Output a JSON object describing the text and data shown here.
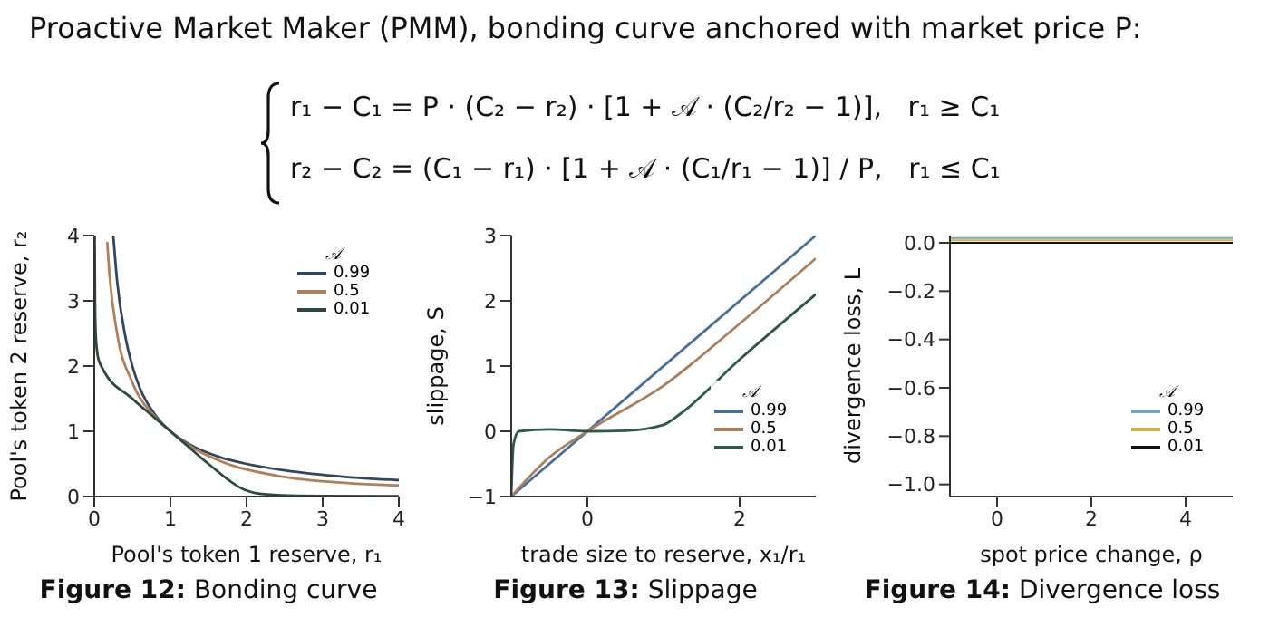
{
  "chart_data": [
    {
      "type": "line",
      "title": "Proactive Market Maker (PMM), bonding curve anchored with market price P:",
      "annotations": [
        "r₁ − C₁ = P · (C₂ − r₂) · [1 + 𝒜 · (C₂/r₂ − 1)],   r₁ ≥ C₁",
        "r₂ − C₂ = (C₁ − r₁) · [1 + 𝒜 · (C₁/r₁ − 1)] / P,   r₁ ≤ C₁",
        "Figure 12: Bonding curve"
      ],
      "xlabel": "Pool's token 1 reserve, r₁",
      "ylabel": "Pool's token 2 reserve, r₂",
      "xlim": [
        0,
        4
      ],
      "ylim": [
        0,
        4
      ],
      "xticks": [
        0,
        1,
        2,
        3,
        4
      ],
      "yticks": [
        0,
        1,
        2,
        3,
        4
      ],
      "marker": "none",
      "line_style": "solid",
      "legend": "top right",
      "legend_title": "𝒜",
      "series": [
        {
          "name": "0.99",
          "color": "#34465e",
          "x": [
            0.25,
            0.3,
            0.4,
            0.5,
            0.6,
            0.8,
            1,
            1.25,
            1.66,
            2,
            2.5,
            3.3,
            4
          ],
          "values": [
            4,
            3.3,
            2.5,
            2,
            1.66,
            1.25,
            1,
            0.8,
            0.6,
            0.5,
            0.4,
            0.3,
            0.25
          ]
        },
        {
          "name": "0.5",
          "color": "#b0805a",
          "x": [
            0.17,
            0.2,
            0.3,
            0.5,
            0.8,
            1,
            1.22,
            1.75,
            2.5,
            3.4,
            4
          ],
          "values": [
            3.9,
            3.4,
            2.5,
            1.75,
            1.22,
            1,
            0.8,
            0.5,
            0.3,
            0.2,
            0.17
          ]
        },
        {
          "name": "0.01",
          "color": "#2c4a3c",
          "x": [
            0.005,
            0.01,
            0.02,
            0.05,
            0.1,
            0.5,
            0.8,
            1,
            1.2,
            1.5,
            1.98,
            2.13,
            2.46,
            2.97,
            4
          ],
          "values": [
            4,
            2.97,
            2.46,
            2.13,
            1.98,
            1.5,
            1.2,
            1,
            0.8,
            0.5,
            0.1,
            0.05,
            0.02,
            0.01,
            0.005
          ]
        }
      ]
    },
    {
      "type": "line",
      "annotations": [
        "Figure 13: Slippage"
      ],
      "xlabel": "trade size to reserve, x₁/r₁",
      "ylabel": "slippage, S",
      "xlim": [
        -1,
        3
      ],
      "ylim": [
        -1,
        3
      ],
      "xticks": [
        0,
        2
      ],
      "yticks": [
        {
          "value": -1,
          "label": "−1"
        },
        0,
        1,
        2,
        3
      ],
      "marker": "none",
      "line_style": "solid",
      "legend": "bottom right",
      "legend_title": "𝒜",
      "series": [
        {
          "name": "0.99",
          "color": "#4a6f9a",
          "x": [
            -1,
            3
          ],
          "values": [
            -1,
            3
          ]
        },
        {
          "name": "0.5",
          "color": "#a8805e",
          "x": [
            -1,
            -0.5,
            0,
            1,
            2,
            3
          ],
          "values": [
            -1,
            -0.4,
            0,
            0.7,
            1.65,
            2.65
          ]
        },
        {
          "name": "0.01",
          "color": "#2f5a45",
          "x": [
            -1,
            -0.97,
            -0.9,
            -0.5,
            0,
            0.5,
            1,
            1.2,
            2,
            3
          ],
          "values": [
            -1,
            -0.2,
            0,
            0.03,
            0,
            0.01,
            0.1,
            0.25,
            1.1,
            2.1
          ]
        }
      ]
    },
    {
      "type": "line",
      "annotations": [
        "Figure 14: Divergence loss"
      ],
      "xlabel": "spot price change, ρ",
      "ylabel": "divergence loss, L",
      "xlim": [
        -1,
        5
      ],
      "ylim": [
        -1.05,
        0.03
      ],
      "xticks": [
        0,
        2,
        4
      ],
      "yticks": [
        {
          "value": -1,
          "label": "−1.0"
        },
        {
          "value": -0.8,
          "label": "−0.8"
        },
        {
          "value": -0.6,
          "label": "−0.6"
        },
        {
          "value": -0.4,
          "label": "−0.4"
        },
        {
          "value": -0.2,
          "label": "−0.2"
        },
        {
          "value": 0,
          "label": "0.0"
        }
      ],
      "marker": "none",
      "line_style": "solid",
      "legend": "bottom right",
      "legend_title": "𝒜",
      "series": [
        {
          "name": "0.99",
          "color": "#6fa8c0",
          "x": [
            -1,
            5
          ],
          "values": [
            0.02,
            0.02
          ]
        },
        {
          "name": "0.5",
          "color": "#d4b04a",
          "x": [
            -1,
            5
          ],
          "values": [
            0.01,
            0.01
          ]
        },
        {
          "name": "0.01",
          "color": "#111111",
          "x": [
            -1,
            5
          ],
          "values": [
            0,
            0
          ]
        }
      ]
    }
  ]
}
